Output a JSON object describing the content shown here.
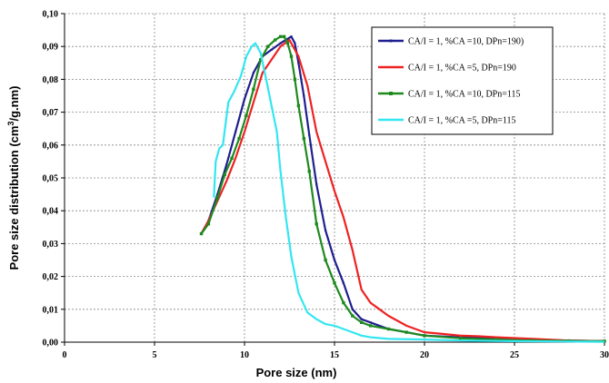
{
  "chart_data": {
    "type": "line",
    "xlabel": "Pore size (nm)",
    "ylabel_main": "Pore size distribution (cm",
    "ylabel_sup": "3",
    "ylabel_tail": "/g.nm)",
    "xlim": [
      0,
      30
    ],
    "ylim": [
      0,
      0.1
    ],
    "x_ticks": [
      "0",
      "5",
      "10",
      "15",
      "20",
      "25",
      "30"
    ],
    "y_ticks": [
      "0,00",
      "0,01",
      "0,02",
      "0,03",
      "0,04",
      "0,05",
      "0,06",
      "0,07",
      "0,08",
      "0,09",
      "0,10"
    ],
    "grid": true,
    "legend_position": "top-right",
    "series": [
      {
        "name": "CA/I = 1, %CA =10, DPn=190)",
        "color": "#1f1f8f",
        "marker": "small",
        "x": [
          7.6,
          8.0,
          8.5,
          9.0,
          9.5,
          10.0,
          10.5,
          11.0,
          11.5,
          12.0,
          12.3,
          12.6,
          12.8,
          13.0,
          13.3,
          13.6,
          14.0,
          14.5,
          15.0,
          15.5,
          16.0,
          16.5,
          17.0,
          18.0,
          19.0,
          20.0,
          22.0,
          24.0,
          26.0,
          28.0,
          30.0
        ],
        "y": [
          0.033,
          0.037,
          0.045,
          0.054,
          0.064,
          0.074,
          0.082,
          0.087,
          0.089,
          0.091,
          0.092,
          0.093,
          0.091,
          0.085,
          0.075,
          0.063,
          0.048,
          0.034,
          0.025,
          0.018,
          0.01,
          0.007,
          0.006,
          0.004,
          0.003,
          0.002,
          0.0015,
          0.001,
          0.0007,
          0.0005,
          0.0003
        ]
      },
      {
        "name": "CA/I = 1, %CA =5, DPn=190",
        "color": "#ee2222",
        "marker": "none",
        "x": [
          7.6,
          8.0,
          8.5,
          9.0,
          9.5,
          10.0,
          10.5,
          11.0,
          11.5,
          12.0,
          12.5,
          13.0,
          13.5,
          14.0,
          14.5,
          15.0,
          15.5,
          16.0,
          16.5,
          17.0,
          17.5,
          18.0,
          19.0,
          20.0,
          21.0,
          22.0,
          23.0,
          24.0,
          26.0,
          28.0,
          30.0
        ],
        "y": [
          0.033,
          0.037,
          0.043,
          0.049,
          0.056,
          0.064,
          0.073,
          0.082,
          0.086,
          0.09,
          0.092,
          0.087,
          0.078,
          0.064,
          0.055,
          0.046,
          0.038,
          0.028,
          0.016,
          0.012,
          0.01,
          0.008,
          0.005,
          0.003,
          0.0025,
          0.002,
          0.0018,
          0.0015,
          0.001,
          0.0005,
          0.0003
        ]
      },
      {
        "name": "CA/I = 1, %CA =10, DPn=115",
        "color": "#1e8a1e",
        "marker": "square",
        "x": [
          7.6,
          8.0,
          8.5,
          8.9,
          9.3,
          9.7,
          10.1,
          10.5,
          10.9,
          11.3,
          11.7,
          12.0,
          12.2,
          12.4,
          12.6,
          12.8,
          13.0,
          13.3,
          13.6,
          14.0,
          14.5,
          15.0,
          15.5,
          16.0,
          16.5,
          17.0,
          18.0,
          19.0,
          20.0,
          22.0,
          24.0,
          26.0,
          28.0,
          30.0
        ],
        "y": [
          0.033,
          0.036,
          0.044,
          0.051,
          0.056,
          0.062,
          0.069,
          0.077,
          0.086,
          0.09,
          0.092,
          0.093,
          0.093,
          0.091,
          0.087,
          0.08,
          0.072,
          0.062,
          0.052,
          0.036,
          0.025,
          0.018,
          0.012,
          0.008,
          0.006,
          0.005,
          0.004,
          0.003,
          0.002,
          0.0012,
          0.0008,
          0.0005,
          0.0004,
          0.0003
        ]
      },
      {
        "name": "CA/I = 1, %CA =5, DPn=115",
        "color": "#33e6f0",
        "marker": "none",
        "x": [
          8.3,
          8.4,
          8.6,
          8.8,
          9.1,
          9.4,
          9.8,
          10.1,
          10.4,
          10.6,
          10.9,
          11.2,
          11.5,
          11.8,
          12.0,
          12.3,
          12.6,
          13.0,
          13.5,
          14.0,
          14.5,
          15.0,
          15.5,
          16.0,
          16.5,
          17.0,
          18.0,
          20.0,
          22.0,
          25.0,
          28.0,
          30.0
        ],
        "y": [
          0.044,
          0.055,
          0.059,
          0.06,
          0.073,
          0.076,
          0.081,
          0.087,
          0.09,
          0.091,
          0.088,
          0.08,
          0.072,
          0.064,
          0.052,
          0.038,
          0.026,
          0.015,
          0.009,
          0.007,
          0.0055,
          0.005,
          0.004,
          0.003,
          0.002,
          0.0015,
          0.001,
          0.0008,
          0.0005,
          0.0003,
          0.0002,
          0.0001
        ]
      }
    ]
  }
}
